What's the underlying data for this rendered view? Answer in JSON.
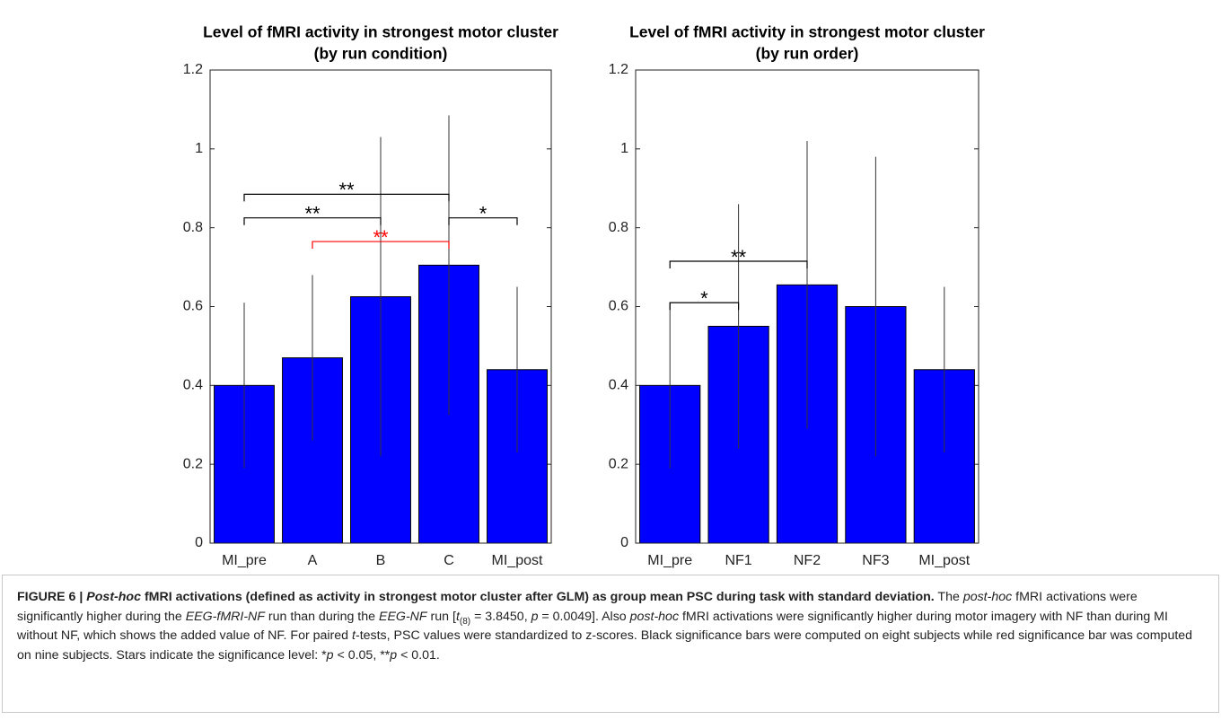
{
  "chart_data": [
    {
      "type": "bar",
      "title": "Level of fMRI activity in strongest motor cluster",
      "subtitle": "(by run condition)",
      "categories": [
        "MI_pre",
        "A",
        "B",
        "C",
        "MI_post"
      ],
      "values": [
        0.4,
        0.47,
        0.625,
        0.705,
        0.44
      ],
      "errors": [
        0.21,
        0.21,
        0.405,
        0.38,
        0.21
      ],
      "color": "#0000ff",
      "ylim": [
        0,
        1.2
      ],
      "yticks": [
        0,
        0.2,
        0.4,
        0.6,
        0.8,
        1,
        1.2
      ],
      "significance": [
        {
          "from": 0,
          "to": 3,
          "y": 0.885,
          "label": "**",
          "color": "#000000"
        },
        {
          "from": 0,
          "to": 2,
          "y": 0.825,
          "label": "**",
          "color": "#000000"
        },
        {
          "from": 3,
          "to": 4,
          "y": 0.825,
          "label": "*",
          "color": "#000000"
        },
        {
          "from": 1,
          "to": 3,
          "y": 0.765,
          "label": "**",
          "color": "#ff0000"
        }
      ]
    },
    {
      "type": "bar",
      "title": "Level of fMRI activity in strongest motor cluster",
      "subtitle": "(by run order)",
      "categories": [
        "MI_pre",
        "NF1",
        "NF2",
        "NF3",
        "MI_post"
      ],
      "values": [
        0.4,
        0.55,
        0.655,
        0.6,
        0.44
      ],
      "errors": [
        0.21,
        0.31,
        0.365,
        0.38,
        0.21
      ],
      "color": "#0000ff",
      "ylim": [
        0,
        1.2
      ],
      "yticks": [
        0,
        0.2,
        0.4,
        0.6,
        0.8,
        1,
        1.2
      ],
      "significance": [
        {
          "from": 0,
          "to": 2,
          "y": 0.715,
          "label": "**",
          "color": "#000000"
        },
        {
          "from": 0,
          "to": 1,
          "y": 0.61,
          "label": "*",
          "color": "#000000"
        }
      ]
    }
  ],
  "caption": [
    {
      "text": "FIGURE 6 | ",
      "style": "bold"
    },
    {
      "text": "Post-hoc",
      "style": "bold-italic"
    },
    {
      "text": " fMRI activations (defined as activity in strongest motor cluster after GLM) as group mean PSC during task with standard deviation.",
      "style": "bold"
    },
    {
      "text": " The ",
      "style": "normal"
    },
    {
      "text": "post-hoc",
      "style": "italic"
    },
    {
      "text": " fMRI activations were significantly higher during the ",
      "style": "normal"
    },
    {
      "text": "EEG-fMRI-NF",
      "style": "italic"
    },
    {
      "text": " run than during the ",
      "style": "normal"
    },
    {
      "text": "EEG-NF",
      "style": "italic"
    },
    {
      "text": " run [",
      "style": "normal"
    },
    {
      "text": "t",
      "style": "italic"
    },
    {
      "text": "(8)",
      "style": "sub"
    },
    {
      "text": " = 3.8450, ",
      "style": "normal"
    },
    {
      "text": "p",
      "style": "italic"
    },
    {
      "text": " = 0.0049]. Also ",
      "style": "normal"
    },
    {
      "text": "post-hoc",
      "style": "italic"
    },
    {
      "text": " fMRI activations were significantly higher during motor imagery with NF than during MI without NF, which shows the added value of NF. For paired ",
      "style": "normal"
    },
    {
      "text": "t",
      "style": "italic"
    },
    {
      "text": "-tests, PSC values were standardized to z-scores. Black significance bars were computed on eight subjects while red significance bar was computed on nine subjects. Stars indicate the significance level: *",
      "style": "normal"
    },
    {
      "text": "p",
      "style": "italic"
    },
    {
      "text": " < 0.05, **",
      "style": "normal"
    },
    {
      "text": "p",
      "style": "italic"
    },
    {
      "text": " < 0.01.",
      "style": "normal"
    }
  ]
}
